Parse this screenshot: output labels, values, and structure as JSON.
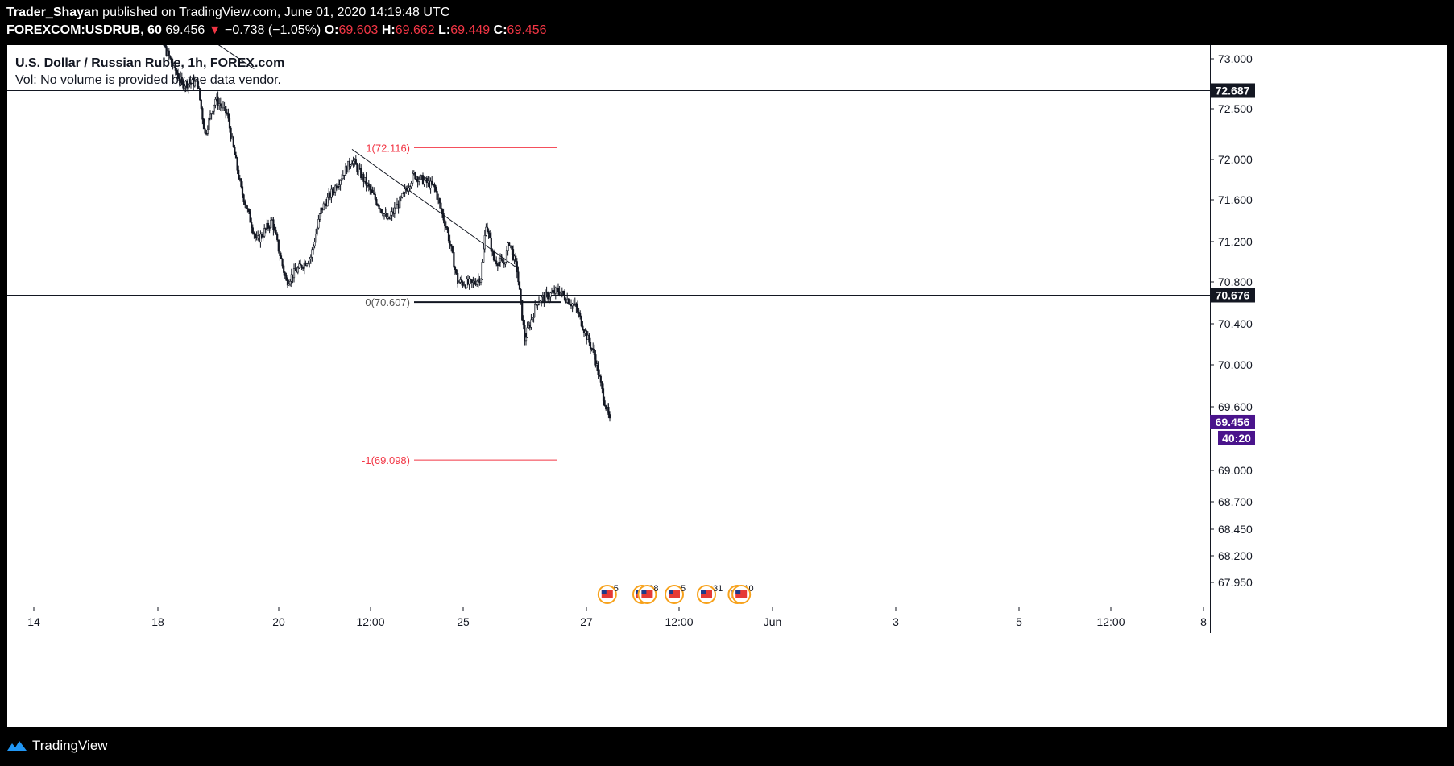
{
  "header": {
    "author": "Trader_Shayan",
    "published": " published on TradingView.com, June 01, 2020 14:19:48 UTC",
    "symbol": "FOREXCOM:USDRUB, 60",
    "last": "69.456",
    "change_arrow": "▼",
    "change": "−0.738 (−1.05%)",
    "o_label": "O:",
    "o": "69.603",
    "h_label": "H:",
    "h": "69.662",
    "l_label": "L:",
    "l": "69.449",
    "c_label": "C:",
    "c": "69.456"
  },
  "legend": {
    "title": "U.S. Dollar / Russian Ruble, 1h, FOREX.com",
    "volume_note": "Vol: No volume is provided by the data vendor."
  },
  "footer": {
    "brand": "TradingView",
    "logo_icon": "tradingview-logo-icon"
  },
  "colors": {
    "background": "#000000",
    "panel": "#ffffff",
    "candle": "#131722",
    "fib": "#f23645",
    "price_tag": "#131722",
    "current_tag": "#4a148c"
  },
  "chart_data": {
    "type": "candlestick",
    "symbol": "USDRUB",
    "interval": "1h",
    "y_ticks": [
      "73.000",
      "72.500",
      "72.000",
      "71.600",
      "71.200",
      "70.800",
      "70.400",
      "70.000",
      "69.600",
      "69.000",
      "68.700",
      "68.450",
      "68.200",
      "67.950"
    ],
    "x_ticks": [
      "14",
      "18",
      "20",
      "12:00",
      "25",
      "27",
      "12:00",
      "Jun",
      "3",
      "5",
      "12:00",
      "8"
    ],
    "horizontal_lines": [
      {
        "value": 72.687,
        "label": "72.687"
      },
      {
        "value": 70.676,
        "label": "70.676"
      }
    ],
    "current_price": {
      "value": 69.456,
      "label": "69.456",
      "countdown": "40:20"
    },
    "fib_levels": [
      {
        "label": "1(72.116)",
        "value": 72.116
      },
      {
        "label": "0(70.607)",
        "value": 70.607
      },
      {
        "label": "-1(69.098)",
        "value": 69.098
      }
    ],
    "trendlines": [
      {
        "from": [
          "2020-05-19 04:00",
          73.3
        ],
        "to": [
          "2020-05-21 02:00",
          72.9
        ]
      },
      {
        "from": [
          "2020-05-24 06:00",
          72.1
        ],
        "to": [
          "2020-05-29 15:00",
          70.93
        ]
      }
    ],
    "price_path": [
      [
        "2020-05-17 16:00",
        73.5
      ],
      [
        "2020-05-18 05:00",
        73.1
      ],
      [
        "2020-05-18 18:00",
        72.75
      ],
      [
        "2020-05-19 06:00",
        72.76
      ],
      [
        "2020-05-19 12:00",
        72.25
      ],
      [
        "2020-05-19 20:00",
        72.6
      ],
      [
        "2020-05-20 05:00",
        72.45
      ],
      [
        "2020-05-20 16:00",
        71.7
      ],
      [
        "2020-05-21 04:00",
        71.2
      ],
      [
        "2020-05-21 16:00",
        71.4
      ],
      [
        "2020-05-22 03:00",
        70.8
      ],
      [
        "2020-05-22 10:00",
        70.9
      ],
      [
        "2020-05-22 22:00",
        71.05
      ],
      [
        "2020-05-23 06:00",
        71.5
      ],
      [
        "2020-05-24 06:00",
        72.0
      ],
      [
        "2020-05-24 22:00",
        71.65
      ],
      [
        "2020-05-25 10:00",
        71.4
      ],
      [
        "2020-05-25 20:00",
        71.6
      ],
      [
        "2020-05-26 06:00",
        71.85
      ],
      [
        "2020-05-26 22:00",
        71.72
      ],
      [
        "2020-05-27 08:00",
        71.3
      ],
      [
        "2020-05-27 16:00",
        70.8
      ],
      [
        "2020-05-28 03:00",
        70.78
      ],
      [
        "2020-05-28 10:00",
        70.85
      ],
      [
        "2020-05-28 14:00",
        71.38
      ],
      [
        "2020-05-28 20:00",
        71.02
      ],
      [
        "2020-05-29 04:00",
        70.98
      ],
      [
        "2020-05-29 08:00",
        71.2
      ],
      [
        "2020-05-29 14:00",
        70.92
      ],
      [
        "2020-05-29 20:00",
        70.25
      ],
      [
        "2020-05-30 06:00",
        70.62
      ],
      [
        "2020-05-30 22:00",
        70.72
      ],
      [
        "2020-05-31 12:00",
        70.55
      ],
      [
        "2020-05-31 20:00",
        70.28
      ],
      [
        "2020-06-01 02:00",
        70.1
      ],
      [
        "2020-06-01 08:00",
        69.75
      ],
      [
        "2020-06-01 14:00",
        69.456
      ]
    ],
    "event_markers": [
      {
        "date": "2020-06-01 12:00",
        "label": "5"
      },
      {
        "date": "2020-06-02 15:00",
        "label": "2"
      },
      {
        "date": "2020-06-02 19:00",
        "label": "8"
      },
      {
        "date": "2020-06-03 16:00",
        "label": "5"
      },
      {
        "date": "2020-06-04 17:00",
        "label": "31"
      },
      {
        "date": "2020-06-05 17:00",
        "label": "10"
      },
      {
        "date": "2020-06-05 20:00",
        "label": ""
      }
    ]
  }
}
